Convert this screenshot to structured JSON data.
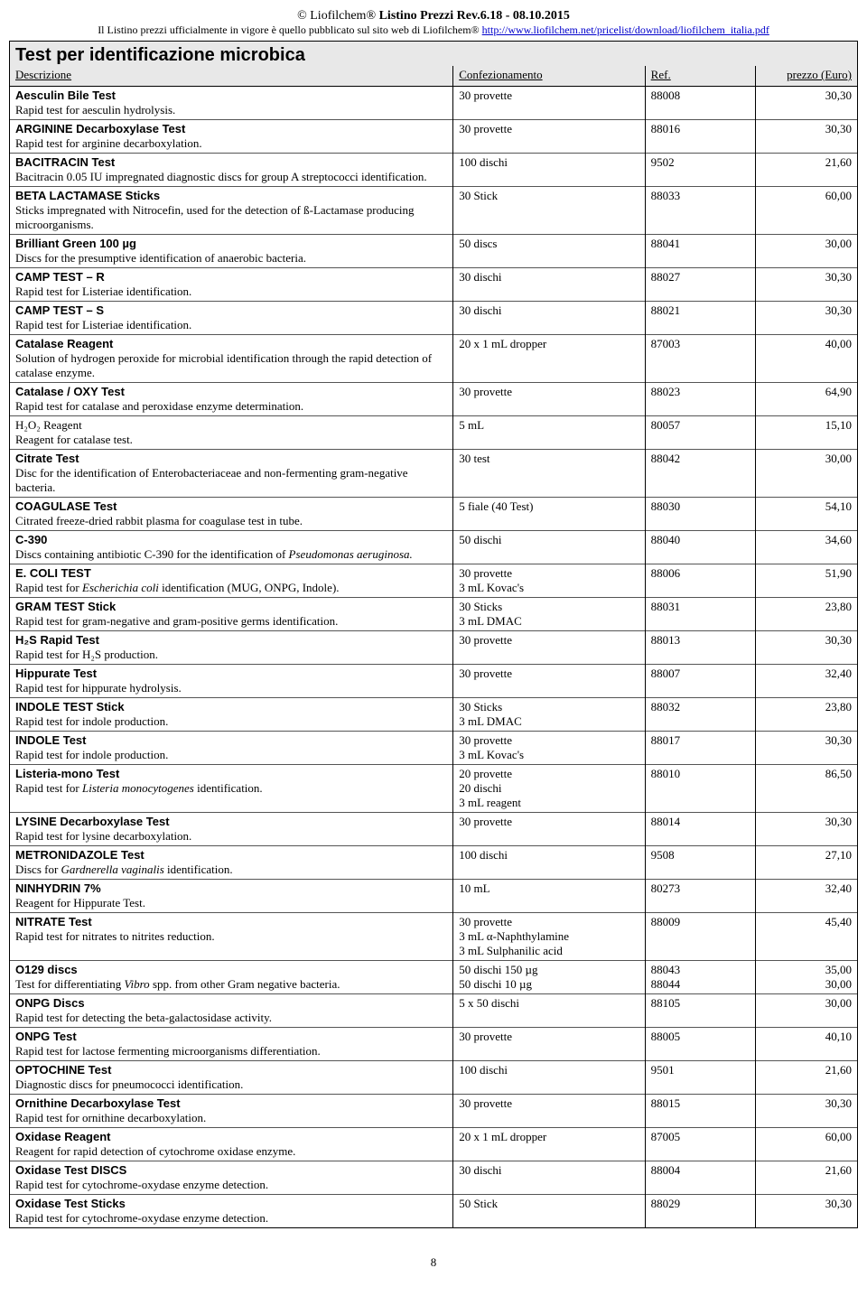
{
  "header": {
    "title_left": "© Liofilchem",
    "title_right": "Listino Prezzi Rev.6.18 - 08.10.2015",
    "subtitle_text": "Il Listino prezzi ufficialmente in vigore è quello pubblicato sul sito web di Liofilchem",
    "subtitle_link": "http://www.liofilchem.net/pricelist/download/liofilchem_italia.pdf"
  },
  "section": {
    "title": "Test per identificazione microbica",
    "col_desc": "Descrizione",
    "col_conf": "Confezionamento",
    "col_ref": "Ref.",
    "col_price": "prezzo (Euro)"
  },
  "rows": [
    {
      "name": "Aesculin Bile Test",
      "note": "Rapid test for aesculin hydrolysis.",
      "conf": "30 provette",
      "ref": "88008",
      "price": "30,30"
    },
    {
      "name": "ARGININE Decarboxylase Test",
      "note": "Rapid test for arginine decarboxylation.",
      "conf": "30 provette",
      "ref": "88016",
      "price": "30,30"
    },
    {
      "name": "BACITRACIN Test",
      "note": "Bacitracin 0.05 IU impregnated diagnostic discs for group A streptococci identification.",
      "conf": "100 dischi",
      "ref": "9502",
      "price": "21,60"
    },
    {
      "name": "BETA LACTAMASE Sticks",
      "note": "Sticks impregnated with Nitrocefin, used for the detection of ß-Lactamase producing microorganisms.",
      "conf": "30 Stick",
      "ref": "88033",
      "price": "60,00"
    },
    {
      "name": "Brilliant Green 100 µg",
      "note": "Discs for the presumptive identification of anaerobic bacteria.",
      "conf": "50 discs",
      "ref": "88041",
      "price": "30,00"
    },
    {
      "name": "CAMP TEST – R",
      "note": "Rapid test for Listeriae identification.",
      "conf": "30 dischi",
      "ref": "88027",
      "price": "30,30"
    },
    {
      "name": "CAMP TEST – S",
      "note": "Rapid test for Listeriae identification.",
      "conf": "30 dischi",
      "ref": "88021",
      "price": "30,30"
    },
    {
      "name": "Catalase Reagent",
      "note": "Solution of hydrogen peroxide for microbial identification through the rapid detection of catalase enzyme.",
      "conf": "20 x 1 mL dropper",
      "ref": "87003",
      "price": "40,00"
    },
    {
      "name": "Catalase / OXY Test",
      "note": "Rapid test for catalase and peroxidase enzyme determination.",
      "conf": "30 provette",
      "ref": "88023",
      "price": "64,90"
    },
    {
      "name": "H₂O₂ Reagent",
      "note": "Reagent for catalase test.",
      "conf": "5 mL",
      "ref": "80057",
      "price": "15,10",
      "name_plain": true
    },
    {
      "name": "Citrate Test",
      "note": "Disc for the identification of Enterobacteriaceae and non-fermenting gram-negative bacteria.",
      "conf": "30 test",
      "ref": "88042",
      "price": "30,00"
    },
    {
      "name": "COAGULASE Test",
      "note": "Citrated freeze-dried rabbit plasma for coagulase test in tube.",
      "conf": "5 fiale (40 Test)",
      "ref": "88030",
      "price": "54,10"
    },
    {
      "name": "C-390",
      "note_html": "Discs containing antibiotic C-390 for the identification of <span class='ital'>Pseudomonas aeruginosa.</span>",
      "conf": "50 dischi",
      "ref": "88040",
      "price": "34,60"
    },
    {
      "name": "E. COLI TEST",
      "note_html": "Rapid test for <span class='ital'>Escherichia coli</span> identification (MUG, ONPG, Indole).",
      "conf": "30 provette\n3 mL Kovac's",
      "ref": "88006",
      "price": "51,90"
    },
    {
      "name": "GRAM TEST Stick",
      "note": "Rapid test for gram-negative and gram-positive germs identification.",
      "conf": "30 Sticks\n3 mL DMAC",
      "ref": "88031",
      "price": "23,80"
    },
    {
      "name": "H₂S Rapid Test",
      "note": "Rapid test for H₂S production.",
      "conf": "30 provette",
      "ref": "88013",
      "price": "30,30"
    },
    {
      "name": "Hippurate Test",
      "note": "Rapid test for hippurate hydrolysis.",
      "conf": "30 provette",
      "ref": "88007",
      "price": "32,40"
    },
    {
      "name": "INDOLE TEST Stick",
      "note": "Rapid test for indole production.",
      "conf": "30 Sticks\n3 mL DMAC",
      "ref": "88032",
      "price": "23,80"
    },
    {
      "name": "INDOLE Test",
      "note": "Rapid test for indole production.",
      "conf": "30 provette\n3 mL Kovac's",
      "ref": "88017",
      "price": "30,30"
    },
    {
      "name": "Listeria-mono Test",
      "note_html": "Rapid test for <span class='ital'>Listeria monocytogenes</span> identification.",
      "conf": "20 provette\n20 dischi\n3 mL reagent",
      "ref": "88010",
      "price": "86,50"
    },
    {
      "name": "LYSINE Decarboxylase Test",
      "note": "Rapid test for lysine decarboxylation.",
      "conf": "30 provette",
      "ref": "88014",
      "price": "30,30"
    },
    {
      "name": "METRONIDAZOLE Test",
      "note_html": "Discs for <span class='ital'>Gardnerella vaginalis</span> identification.",
      "conf": "100 dischi",
      "ref": "9508",
      "price": "27,10"
    },
    {
      "name": "NINHYDRIN 7%",
      "note": "Reagent for Hippurate Test.",
      "conf": "10 mL",
      "ref": "80273",
      "price": "32,40"
    },
    {
      "name": "NITRATE Test",
      "note": "Rapid test for nitrates to nitrites reduction.",
      "conf": "30 provette\n3 mL α-Naphthylamine\n3 mL Sulphanilic acid",
      "ref": "88009",
      "price": "45,40"
    },
    {
      "name": "O129 discs",
      "note_html": "Test for differentiating <span class='ital'>Vibro</span> spp. from other Gram negative bacteria.",
      "conf": "50 dischi 150 µg\n50 dischi 10 µg",
      "ref": "88043\n88044",
      "price": "35,00\n30,00"
    },
    {
      "name": "ONPG Discs",
      "note": "Rapid test for detecting the beta-galactosidase activity.",
      "conf": "5 x 50 dischi",
      "ref": "88105",
      "price": "30,00"
    },
    {
      "name": "ONPG Test",
      "note": "Rapid test for lactose fermenting microorganisms differentiation.",
      "conf": "30 provette",
      "ref": "88005",
      "price": "40,10"
    },
    {
      "name": "OPTOCHINE Test",
      "note": "Diagnostic discs for pneumococci identification.",
      "conf": "100 dischi",
      "ref": "9501",
      "price": "21,60"
    },
    {
      "name": "Ornithine Decarboxylase Test",
      "note": "Rapid test for ornithine decarboxylation.",
      "conf": "30 provette",
      "ref": "88015",
      "price": "30,30"
    },
    {
      "name": "Oxidase Reagent",
      "note": "Reagent for rapid detection of cytochrome oxidase enzyme.",
      "conf": "20 x 1 mL dropper",
      "ref": "87005",
      "price": "60,00"
    },
    {
      "name": "Oxidase Test DISCS",
      "note": "Rapid test for cytochrome-oxydase enzyme detection.",
      "conf": "30 dischi",
      "ref": "88004",
      "price": "21,60"
    },
    {
      "name": "Oxidase Test Sticks",
      "note": "Rapid test for cytochrome-oxydase enzyme detection.",
      "conf": "50 Stick",
      "ref": "88029",
      "price": "30,30"
    }
  ],
  "page_number": "8"
}
